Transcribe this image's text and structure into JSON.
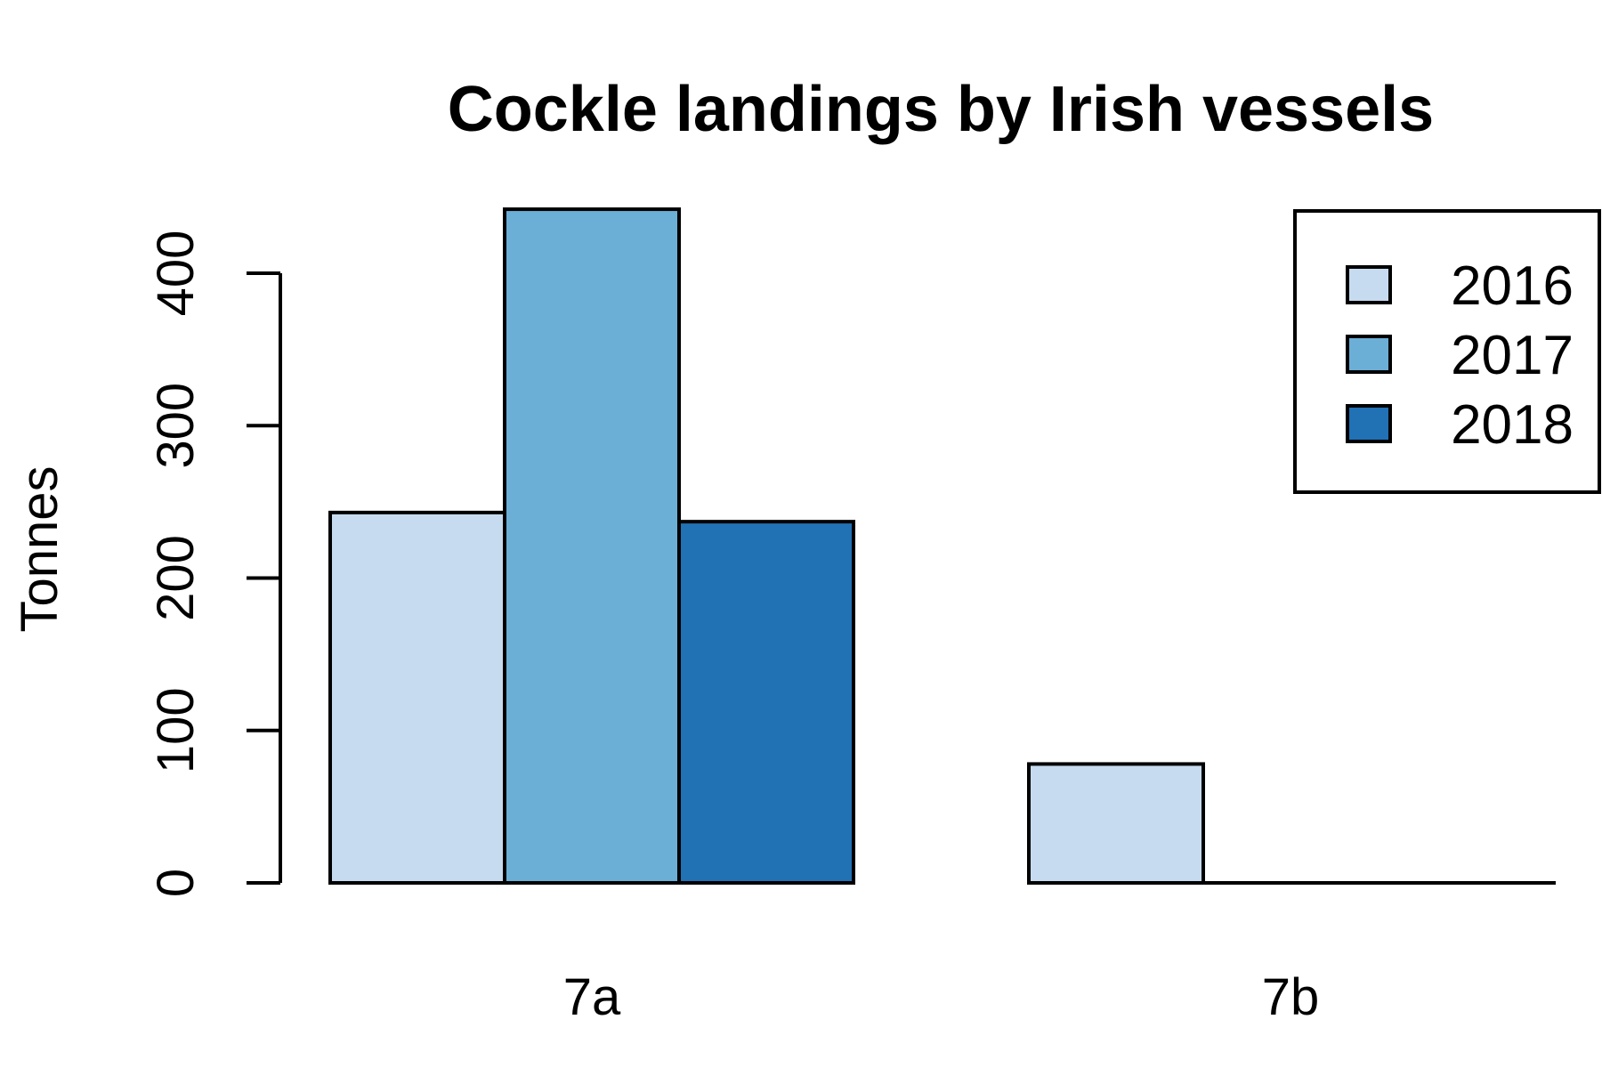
{
  "chart_data": {
    "type": "bar",
    "title": "Cockle landings by Irish vessels",
    "xlabel": "",
    "ylabel": "Tonnes",
    "categories": [
      "7a",
      "7b"
    ],
    "series": [
      {
        "name": "2016",
        "values": [
          243,
          78
        ],
        "color": "#c6dbef"
      },
      {
        "name": "2017",
        "values": [
          442,
          0
        ],
        "color": "#6baed6"
      },
      {
        "name": "2018",
        "values": [
          237,
          0
        ],
        "color": "#2171b5"
      }
    ],
    "ylim": [
      0,
      442
    ],
    "yticks": [
      "0",
      "100",
      "200",
      "300",
      "400"
    ],
    "legend": {
      "position": "top-right",
      "entries": [
        "2016",
        "2017",
        "2018"
      ]
    },
    "grid": false
  }
}
